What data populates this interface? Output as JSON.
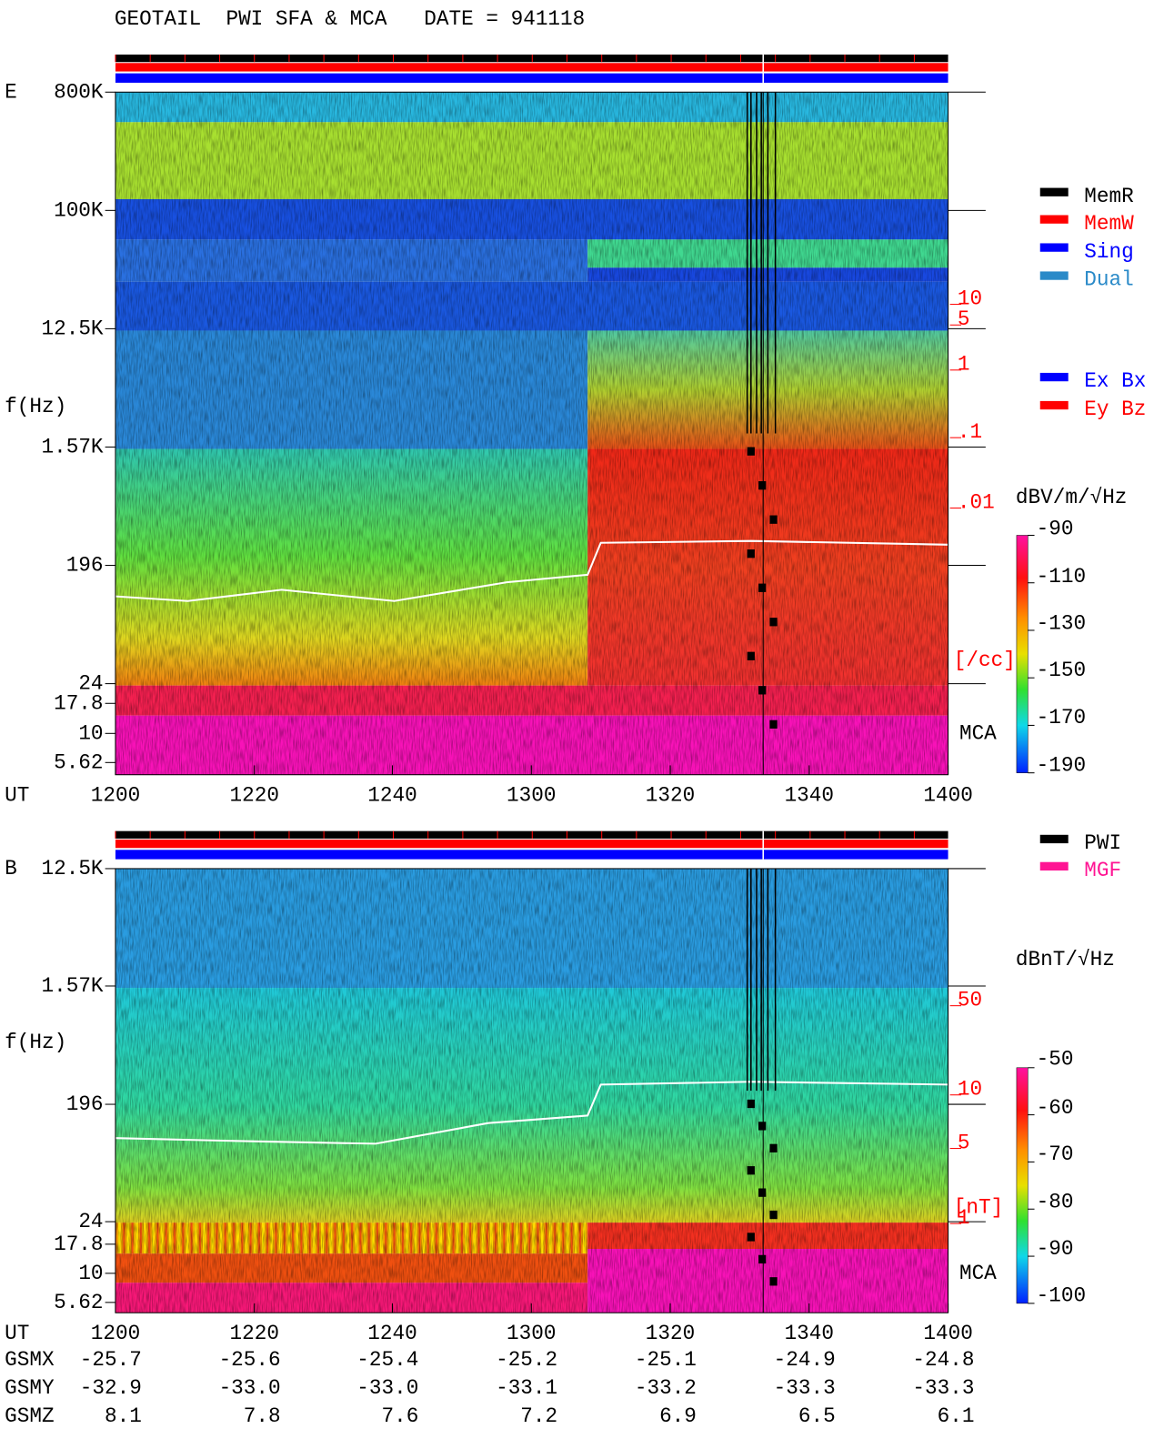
{
  "header": {
    "title": "GEOTAIL  PWI SFA & MCA   DATE = 941118"
  },
  "panels": [
    {
      "label": "E",
      "freq_label": "f(Hz)",
      "freq_ticks": [
        "800K",
        "100K",
        "12.5K",
        "1.57K",
        "196",
        "24",
        "17.8",
        "10",
        "5.62"
      ],
      "density_ticks": [
        "10",
        "5",
        "1",
        ".1",
        ".01"
      ],
      "density_unit": "[/cc]",
      "mca_label": "MCA",
      "time_label": "UT",
      "time_ticks": [
        "1200",
        "1220",
        "1240",
        "1300",
        "1320",
        "1340",
        "1400"
      ],
      "colorbar": {
        "unit": "dBV/m/√Hz",
        "ticks": [
          "-90",
          "-110",
          "-130",
          "-150",
          "-170",
          "-190"
        ]
      }
    },
    {
      "label": "B",
      "freq_label": "f(Hz)",
      "freq_ticks": [
        "12.5K",
        "1.57K",
        "196",
        "24",
        "17.8",
        "10",
        "5.62"
      ],
      "density_ticks": [
        "50",
        "10",
        "5",
        "1"
      ],
      "density_unit": "[nT]",
      "mca_label": "MCA",
      "time_label": "UT",
      "time_ticks": [
        "1200",
        "1220",
        "1240",
        "1300",
        "1320",
        "1340",
        "1400"
      ],
      "colorbar": {
        "unit": "dBnT/√Hz",
        "ticks": [
          "-50",
          "-60",
          "-70",
          "-80",
          "-90",
          "-100"
        ]
      }
    }
  ],
  "legends": {
    "status": [
      {
        "label": "MemR",
        "color": "#000000"
      },
      {
        "label": "MemW",
        "color": "#ff0000"
      },
      {
        "label": "Sing",
        "color": "#0000ff"
      },
      {
        "label": "Dual",
        "color": "#2a8ac8"
      }
    ],
    "components": [
      {
        "label": "Ex Bx",
        "color": "#0000ff"
      },
      {
        "label": "Ey Bz",
        "color": "#ff0000"
      }
    ],
    "source": [
      {
        "label": "PWI",
        "color": "#000000"
      },
      {
        "label": "MGF",
        "color": "#ff1493"
      }
    ]
  },
  "ephemeris": {
    "rows": [
      {
        "label": "GSMX",
        "values": [
          "-25.7",
          "-25.6",
          "-25.4",
          "-25.2",
          "-25.1",
          "-24.9",
          "-24.8"
        ]
      },
      {
        "label": "GSMY",
        "values": [
          "-32.9",
          "-33.0",
          "-33.0",
          "-33.1",
          "-33.2",
          "-33.3",
          "-33.3"
        ]
      },
      {
        "label": "GSMZ",
        "values": [
          "8.1",
          "7.8",
          "7.6",
          "7.2",
          "6.9",
          "6.5",
          "6.1"
        ]
      }
    ]
  }
}
